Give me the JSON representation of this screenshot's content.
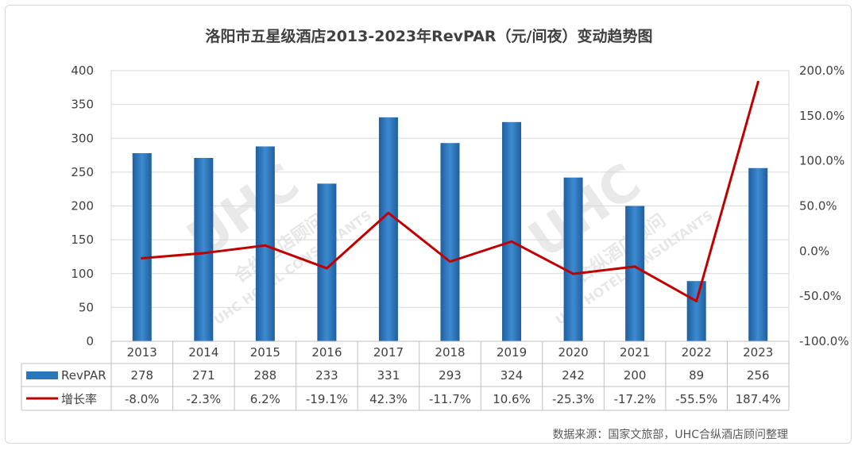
{
  "chart_data": {
    "type": "bar",
    "title": "洛阳市五星级酒店2013-2023年RevPAR（元/间夜）变动趋势图",
    "categories": [
      "2013",
      "2014",
      "2015",
      "2016",
      "2017",
      "2018",
      "2019",
      "2020",
      "2021",
      "2022",
      "2023"
    ],
    "series": [
      {
        "name": "RevPAR",
        "type": "bar",
        "axis": "left",
        "color": "#2e75b6",
        "values": [
          278,
          271,
          288,
          233,
          331,
          293,
          324,
          242,
          200,
          89,
          256
        ],
        "labels": [
          "278",
          "271",
          "288",
          "233",
          "331",
          "293",
          "324",
          "242",
          "200",
          "89",
          "256"
        ]
      },
      {
        "name": "增长率",
        "type": "line",
        "axis": "right",
        "color": "#c00000",
        "values": [
          -8.0,
          -2.3,
          6.2,
          -19.1,
          42.3,
          -11.7,
          10.6,
          -25.3,
          -17.2,
          -55.5,
          187.4
        ],
        "labels": [
          "-8.0%",
          "-2.3%",
          "6.2%",
          "-19.1%",
          "42.3%",
          "-11.7%",
          "10.6%",
          "-25.3%",
          "-17.2%",
          "-55.5%",
          "187.4%"
        ]
      }
    ],
    "y_left": {
      "range": [
        0,
        400
      ],
      "ticks": [
        "0",
        "50",
        "100",
        "150",
        "200",
        "250",
        "300",
        "350",
        "400"
      ]
    },
    "y_right": {
      "range": [
        -100,
        200
      ],
      "ticks": [
        "-100.0%",
        "-50.0%",
        "0.0%",
        "50.0%",
        "100.0%",
        "150.0%",
        "200.0%"
      ]
    },
    "grid": true,
    "legend": "data-table",
    "data_table": true
  },
  "watermark": {
    "logo_text": "UHC",
    "text_1": "合纵酒店顾问",
    "text_2": "UHC HOTEL CONSULTANTS"
  },
  "source": "数据来源：国家文旅部，UHC合纵酒店顾问整理"
}
